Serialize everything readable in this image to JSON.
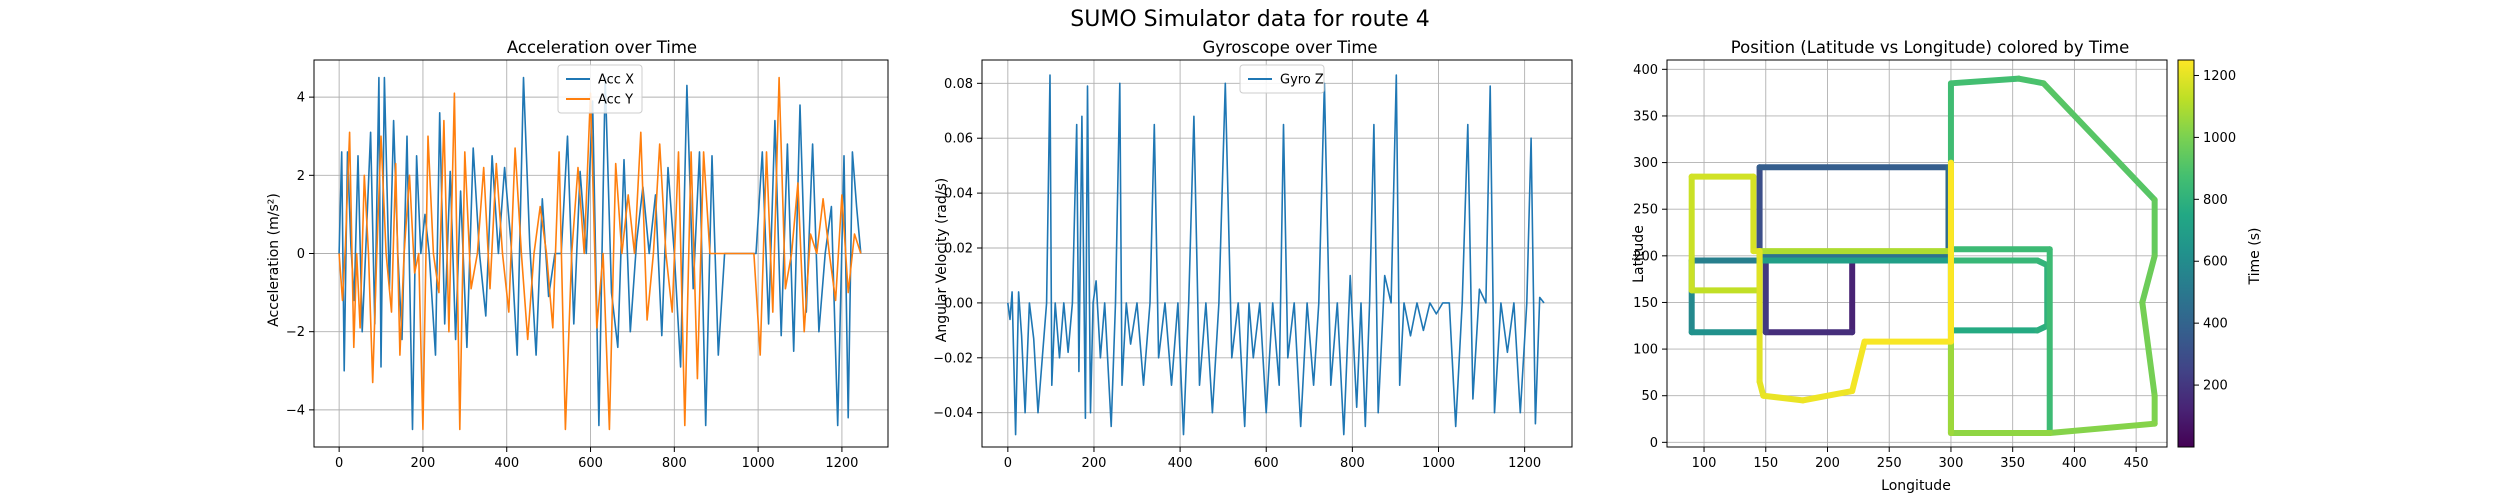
{
  "figure": {
    "title": "SUMO Simulator data for route 4"
  },
  "chart_data": [
    {
      "type": "line",
      "title": "Acceleration over Time",
      "xlabel": "",
      "ylabel": "Acceleration (m/s²)",
      "xlim": [
        -60,
        1310
      ],
      "ylim": [
        -4.95,
        4.95
      ],
      "xticks": [
        0,
        200,
        400,
        600,
        800,
        1000,
        1200
      ],
      "yticks": [
        -4,
        -2,
        0,
        2,
        4
      ],
      "grid": true,
      "legend_position": "top-center",
      "series": [
        {
          "name": "Acc X",
          "color": "#1f77b4",
          "x": [
            0,
            6,
            12,
            20,
            28,
            36,
            45,
            55,
            65,
            75,
            85,
            95,
            100,
            108,
            120,
            130,
            140,
            150,
            162,
            175,
            185,
            195,
            205,
            215,
            230,
            240,
            252,
            265,
            278,
            290,
            305,
            320,
            335,
            350,
            365,
            380,
            395,
            410,
            425,
            440,
            455,
            470,
            485,
            500,
            515,
            530,
            545,
            560,
            575,
            590,
            605,
            620,
            635,
            650,
            665,
            680,
            695,
            710,
            725,
            740,
            755,
            770,
            785,
            800,
            815,
            830,
            845,
            860,
            875,
            890,
            905,
            920,
            935,
            950,
            965,
            980,
            995,
            1010,
            1025,
            1040,
            1055,
            1070,
            1085,
            1100,
            1115,
            1130,
            1145,
            1160,
            1175,
            1190,
            1205,
            1215,
            1225,
            1235,
            1245
          ],
          "y": [
            0,
            2.6,
            -3.0,
            2.6,
            0.2,
            -1.2,
            2.5,
            -2.0,
            0.5,
            3.1,
            -1.8,
            4.5,
            -2.9,
            4.5,
            -0.9,
            3.4,
            0.0,
            -2.2,
            3.0,
            -4.5,
            2.5,
            0.0,
            1.0,
            0.0,
            -2.6,
            3.6,
            -1.8,
            2.1,
            -2.2,
            1.6,
            -2.4,
            2.7,
            0.0,
            -1.6,
            2.5,
            0.0,
            2.2,
            0.3,
            -2.6,
            4.5,
            0.2,
            -2.6,
            1.4,
            -1.1,
            0.0,
            0.0,
            3.0,
            -1.8,
            2.1,
            0.0,
            3.9,
            -4.4,
            4.5,
            -1.0,
            -2.4,
            2.4,
            -2.0,
            0.3,
            1.7,
            0.0,
            1.5,
            -2.1,
            2.2,
            0.0,
            -2.9,
            4.3,
            -0.9,
            2.6,
            -4.4,
            2.5,
            -2.6,
            0.0,
            0.0,
            0.0,
            0.0,
            0.0,
            0.0,
            2.6,
            -1.8,
            3.4,
            -2.1,
            2.8,
            -2.5,
            3.8,
            -1.5,
            2.8,
            -2.0,
            0.0,
            1.2,
            -4.4,
            2.5,
            -4.2,
            2.6,
            1.2,
            0.0
          ]
        },
        {
          "name": "Acc Y",
          "color": "#ff7f0e",
          "x": [
            0,
            8,
            15,
            25,
            35,
            42,
            50,
            60,
            70,
            80,
            90,
            100,
            112,
            125,
            135,
            145,
            155,
            168,
            180,
            190,
            200,
            212,
            225,
            238,
            250,
            262,
            275,
            288,
            300,
            315,
            330,
            345,
            360,
            375,
            390,
            405,
            420,
            435,
            450,
            465,
            480,
            495,
            510,
            525,
            540,
            555,
            570,
            585,
            600,
            615,
            630,
            645,
            660,
            675,
            690,
            705,
            720,
            735,
            750,
            765,
            780,
            795,
            810,
            825,
            840,
            855,
            870,
            885,
            900,
            915,
            930,
            945,
            960,
            975,
            990,
            1005,
            1020,
            1035,
            1050,
            1065,
            1080,
            1095,
            1110,
            1125,
            1140,
            1155,
            1170,
            1185,
            1200,
            1215,
            1230,
            1245
          ],
          "y": [
            0,
            -1.2,
            0.2,
            3.1,
            -2.4,
            0.0,
            -1.9,
            2.0,
            0.0,
            -3.3,
            0.0,
            3.0,
            0.0,
            -1.5,
            2.3,
            -2.6,
            0.0,
            2.0,
            -0.5,
            0.0,
            -4.5,
            3.0,
            0.0,
            -1.0,
            3.4,
            -2.0,
            4.1,
            -4.5,
            2.6,
            -0.9,
            0.0,
            2.2,
            -0.9,
            2.3,
            0.0,
            -1.5,
            2.7,
            0.0,
            -2.2,
            0.0,
            1.2,
            0.0,
            -1.9,
            2.6,
            -4.5,
            0.0,
            2.2,
            0.0,
            4.1,
            -1.9,
            0.0,
            -4.5,
            2.3,
            0.0,
            1.5,
            0.0,
            3.1,
            -1.7,
            0.0,
            2.8,
            0.0,
            -1.5,
            2.6,
            -4.4,
            2.6,
            -3.2,
            2.6,
            0.0,
            0.0,
            0.0,
            0.0,
            0.0,
            0.0,
            0.0,
            0.0,
            -2.6,
            2.6,
            -1.5,
            4.5,
            -0.9,
            0.0,
            1.8,
            -2.0,
            0.5,
            0.0,
            1.4,
            0.0,
            -1.2,
            1.5,
            -1.0,
            0.5,
            0.0
          ]
        }
      ]
    },
    {
      "type": "line",
      "title": "Gyroscope over Time",
      "xlabel": "",
      "ylabel": "Angular Velocity (rad/s)",
      "xlim": [
        -60,
        1310
      ],
      "ylim": [
        -0.0525,
        0.0885
      ],
      "xticks": [
        0,
        200,
        400,
        600,
        800,
        1000,
        1200
      ],
      "yticks": [
        -0.04,
        -0.02,
        0.0,
        0.02,
        0.04,
        0.06,
        0.08
      ],
      "grid": true,
      "legend_position": "top-center",
      "series": [
        {
          "name": "Gyro Z",
          "color": "#1f77b4",
          "x": [
            0,
            5,
            10,
            18,
            25,
            32,
            40,
            50,
            60,
            70,
            80,
            90,
            98,
            102,
            110,
            120,
            130,
            140,
            150,
            160,
            165,
            172,
            180,
            185,
            192,
            198,
            205,
            215,
            225,
            240,
            250,
            260,
            265,
            275,
            285,
            300,
            315,
            330,
            340,
            350,
            365,
            380,
            395,
            408,
            420,
            432,
            445,
            460,
            475,
            490,
            505,
            520,
            535,
            550,
            560,
            570,
            585,
            600,
            615,
            630,
            640,
            650,
            665,
            680,
            695,
            710,
            722,
            735,
            750,
            765,
            780,
            795,
            810,
            820,
            830,
            840,
            850,
            860,
            875,
            890,
            902,
            910,
            920,
            935,
            950,
            965,
            980,
            995,
            1010,
            1025,
            1040,
            1055,
            1068,
            1080,
            1095,
            1110,
            1120,
            1130,
            1145,
            1160,
            1175,
            1190,
            1205,
            1215,
            1225,
            1235,
            1245
          ],
          "y": [
            0.0,
            -0.006,
            0.004,
            -0.048,
            0.004,
            -0.012,
            -0.04,
            0.0,
            -0.013,
            -0.04,
            -0.02,
            0.0,
            0.083,
            -0.03,
            0.0,
            -0.02,
            0.0,
            -0.018,
            0.0,
            0.065,
            -0.025,
            0.068,
            -0.042,
            0.079,
            -0.04,
            0.0,
            0.008,
            -0.02,
            0.0,
            -0.045,
            0.0,
            0.08,
            -0.03,
            0.0,
            -0.015,
            0.0,
            -0.03,
            0.0,
            0.065,
            -0.02,
            0.0,
            -0.03,
            0.0,
            -0.048,
            0.0,
            0.068,
            -0.03,
            0.0,
            -0.04,
            0.0,
            0.08,
            -0.02,
            0.0,
            -0.045,
            0.0,
            -0.02,
            0.0,
            -0.04,
            0.0,
            -0.03,
            0.065,
            -0.02,
            0.0,
            -0.045,
            0.0,
            -0.03,
            0.0,
            0.08,
            -0.03,
            0.0,
            -0.048,
            0.01,
            -0.038,
            0.0,
            -0.045,
            0.0,
            0.065,
            -0.04,
            0.01,
            0.0,
            0.083,
            -0.03,
            0.0,
            -0.012,
            0.0,
            -0.01,
            0.0,
            -0.004,
            0.0,
            0.0,
            -0.045,
            0.0,
            0.065,
            -0.035,
            0.005,
            0.0,
            0.079,
            -0.04,
            0.0,
            -0.018,
            0.0,
            -0.04,
            0.0,
            0.06,
            -0.044,
            0.002,
            0.0
          ]
        }
      ]
    },
    {
      "type": "scatter",
      "title": "Position (Latitude vs Longitude) colored by Time",
      "xlabel": "Longitude",
      "ylabel": "Latitude",
      "xlim": [
        70,
        475
      ],
      "ylim": [
        -5,
        410
      ],
      "xticks": [
        100,
        150,
        200,
        250,
        300,
        350,
        400,
        450
      ],
      "yticks": [
        0,
        50,
        100,
        150,
        200,
        250,
        300,
        350,
        400
      ],
      "grid": true,
      "colorbar": {
        "label": "Time (s)",
        "range": [
          0,
          1250
        ],
        "ticks": [
          200,
          400,
          600,
          800,
          1000,
          1200
        ],
        "colormap": "viridis"
      },
      "path": {
        "longitude": [
          150,
          220,
          220,
          150,
          150,
          145,
          145,
          298,
          298,
          145,
          145,
          90,
          90,
          145,
          145,
          300,
          300,
          370,
          378,
          378,
          370,
          300,
          300,
          380,
          380,
          300,
          300,
          355,
          375,
          465,
          465,
          455,
          465,
          465,
          380,
          300,
          300,
          145,
          145,
          90,
          90,
          140,
          140,
          145,
          145,
          148,
          180,
          220,
          230,
          300,
          300
        ],
        "latitude": [
          195,
          195,
          118,
          118,
          195,
          195,
          295,
          295,
          200,
          200,
          195,
          195,
          118,
          118,
          195,
          195,
          120,
          120,
          125,
          190,
          195,
          195,
          207,
          207,
          10,
          10,
          385,
          390,
          385,
          260,
          200,
          150,
          50,
          20,
          10,
          10,
          205,
          205,
          163,
          163,
          285,
          285,
          205,
          205,
          65,
          50,
          45,
          55,
          108,
          108,
          300
        ],
        "time": [
          0,
          100,
          140,
          190,
          230,
          270,
          330,
          410,
          450,
          490,
          510,
          560,
          610,
          640,
          680,
          720,
          740,
          780,
          790,
          810,
          820,
          840,
          845,
          850,
          855,
          860,
          860,
          880,
          900,
          940,
          960,
          975,
          1000,
          1010,
          1030,
          1050,
          1080,
          1110,
          1125,
          1140,
          1160,
          1170,
          1180,
          1190,
          1200,
          1205,
          1215,
          1225,
          1235,
          1245,
          1250
        ]
      }
    }
  ]
}
